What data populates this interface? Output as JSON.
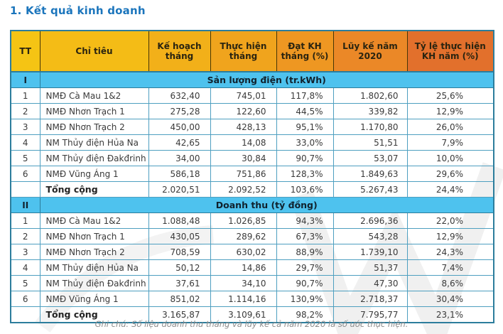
{
  "title": "1. Kết quả kinh doanh",
  "note": "Ghi chú: Số liệu doanh thu tháng và lũy kế cả năm 2020 là số ước thực hiện.",
  "colors": {
    "title_blue": "#1b75bc",
    "header_gradient_start": "#f5c414",
    "header_gradient_end": "#e2702c",
    "header_text": "#2a2410",
    "section_band_blue": "#4ec2ee",
    "grid_border_teal": "#4e9fc0",
    "outer_border_teal": "#2c7d9c",
    "header_divider_brown": "#473606",
    "body_text": "#3a3a3a",
    "note_gray": "#8c8c8c"
  },
  "table": {
    "headers": [
      "TT",
      "Chỉ tiêu",
      "Kế hoạch tháng",
      "Thực hiện tháng",
      "Đạt KH tháng (%)",
      "Lũy kế năm 2020",
      "Tỷ lệ thực hiện KH năm (%)"
    ],
    "sections": [
      {
        "id": "I",
        "label": "Sản lượng điện (tr.kWh)",
        "rows": [
          [
            "1",
            "NMĐ Cà Mau 1&2",
            "632,40",
            "745,01",
            "117,8%",
            "1.802,60",
            "25,6%"
          ],
          [
            "2",
            "NMĐ Nhơn Trạch 1",
            "275,28",
            "122,60",
            "44,5%",
            "339,82",
            "12,9%"
          ],
          [
            "3",
            "NMĐ Nhơn Trạch 2",
            "450,00",
            "428,13",
            "95,1%",
            "1.170,80",
            "26,0%"
          ],
          [
            "4",
            "NM Thủy điện Hủa Na",
            "42,65",
            "14,08",
            "33,0%",
            "51,51",
            "7,9%"
          ],
          [
            "5",
            "NM Thủy điện Đakđrinh",
            "34,00",
            "30,84",
            "90,7%",
            "53,07",
            "10,0%"
          ],
          [
            "6",
            "NMĐ Vũng Áng 1",
            "586,18",
            "751,86",
            "128,3%",
            "1.849,63",
            "29,6%"
          ]
        ],
        "total": [
          "",
          "Tổng cộng",
          "2.020,51",
          "2.092,52",
          "103,6%",
          "5.267,43",
          "24,4%"
        ]
      },
      {
        "id": "II",
        "label": "Doanh thu (tỷ đồng)",
        "rows": [
          [
            "1",
            "NMĐ Cà Mau 1&2",
            "1.088,48",
            "1.026,85",
            "94,3%",
            "2.696,36",
            "22,0%"
          ],
          [
            "2",
            "NMĐ Nhơn Trạch 1",
            "430,05",
            "289,62",
            "67,3%",
            "543,28",
            "12,9%"
          ],
          [
            "3",
            "NMĐ Nhơn Trạch 2",
            "708,59",
            "630,02",
            "88,9%",
            "1.739,10",
            "24,3%"
          ],
          [
            "4",
            "NM Thủy điện Hủa Na",
            "50,12",
            "14,86",
            "29,7%",
            "51,37",
            "7,4%"
          ],
          [
            "5",
            "NM Thủy điện Đakđrinh",
            "37,61",
            "34,10",
            "90,7%",
            "47,30",
            "8,6%"
          ],
          [
            "6",
            "NMĐ Vũng Áng 1",
            "851,02",
            "1.114,16",
            "130,9%",
            "2.718,37",
            "30,4%"
          ]
        ],
        "total": [
          "",
          "Tổng cộng",
          "3.165,87",
          "3.109,61",
          "98,2%",
          "7.795,77",
          "23,1%"
        ]
      }
    ]
  }
}
